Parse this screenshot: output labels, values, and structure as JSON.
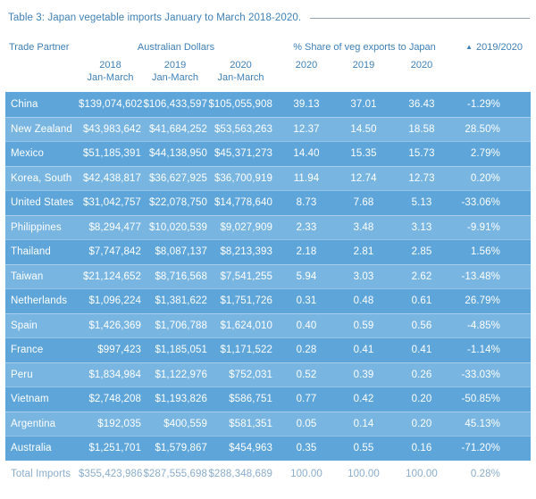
{
  "title": "Table 3: Japan vegetable imports January to March 2018-2020.",
  "header": {
    "trade_partner": "Trade Partner",
    "aud_group": "Australian Dollars",
    "share_group": "% Share of veg exports to Japan",
    "change_label": "2019/2020",
    "sort_icon": "triangle-up",
    "sort_glyph": "▲",
    "sub_columns": [
      {
        "year": "2018",
        "period": "Jan-March"
      },
      {
        "year": "2019",
        "period": "Jan-March"
      },
      {
        "year": "2020",
        "period": "Jan-March"
      },
      {
        "year": "2020",
        "period": ""
      },
      {
        "year": "2019",
        "period": ""
      },
      {
        "year": "2020",
        "period": ""
      }
    ]
  },
  "table": {
    "rows": [
      {
        "cells": [
          "China",
          "$139,074,602",
          "$106,433,597",
          "$105,055,908",
          "39.13",
          "37.01",
          "36.43",
          "-1.29%"
        ]
      },
      {
        "cells": [
          "New Zealand",
          "$43,983,642",
          "$41,684,252",
          "$53,563,263",
          "12.37",
          "14.50",
          "18.58",
          "28.50%"
        ]
      },
      {
        "cells": [
          "Mexico",
          "$51,185,391",
          "$44,138,950",
          "$45,371,273",
          "14.40",
          "15.35",
          "15.73",
          "2.79%"
        ]
      },
      {
        "cells": [
          "Korea, South",
          "$42,438,817",
          "$36,627,925",
          "$36,700,919",
          "11.94",
          "12.74",
          "12.73",
          "0.20%"
        ]
      },
      {
        "cells": [
          "United States",
          "$31,042,757",
          "$22,078,750",
          "$14,778,640",
          "8.73",
          "7.68",
          "5.13",
          "-33.06%"
        ]
      },
      {
        "cells": [
          "Philippines",
          "$8,294,477",
          "$10,020,539",
          "$9,027,909",
          "2.33",
          "3.48",
          "3.13",
          "-9.91%"
        ]
      },
      {
        "cells": [
          "Thailand",
          "$7,747,842",
          "$8,087,137",
          "$8,213,393",
          "2.18",
          "2.81",
          "2.85",
          "1.56%"
        ]
      },
      {
        "cells": [
          "Taiwan",
          "$21,124,652",
          "$8,716,568",
          "$7,541,255",
          "5.94",
          "3.03",
          "2.62",
          "-13.48%"
        ]
      },
      {
        "cells": [
          "Netherlands",
          "$1,096,224",
          "$1,381,622",
          "$1,751,726",
          "0.31",
          "0.48",
          "0.61",
          "26.79%"
        ]
      },
      {
        "cells": [
          "Spain",
          "$1,426,369",
          "$1,706,788",
          "$1,624,010",
          "0.40",
          "0.59",
          "0.56",
          "-4.85%"
        ]
      },
      {
        "cells": [
          "France",
          "$997,423",
          "$1,185,051",
          "$1,171,522",
          "0.28",
          "0.41",
          "0.41",
          "-1.14%"
        ]
      },
      {
        "cells": [
          "Peru",
          "$1,834,984",
          "$1,122,976",
          "$752,031",
          "0.52",
          "0.39",
          "0.26",
          "-33.03%"
        ]
      },
      {
        "cells": [
          "Vietnam",
          "$2,748,208",
          "$1,193,826",
          "$586,751",
          "0.77",
          "0.42",
          "0.20",
          "-50.85%"
        ]
      },
      {
        "cells": [
          "Argentina",
          "$192,035",
          "$400,559",
          "$581,351",
          "0.05",
          "0.14",
          "0.20",
          "45.13%"
        ]
      },
      {
        "cells": [
          "Australia",
          "$1,251,701",
          "$1,579,867",
          "$454,963",
          "0.35",
          "0.55",
          "0.16",
          "-71.20%"
        ]
      }
    ],
    "total_row": [
      "Total Imports",
      "$355,423,986",
      "$287,555,698",
      "$288,348,689",
      "100.00",
      "100.00",
      "100.00",
      "0.28%"
    ]
  },
  "colors": {
    "accent_blue": "#4080b5",
    "row_dark": "#5ea5d9",
    "row_light": "#78b5e1",
    "row_text": "#ffffff",
    "total_text": "#8aadcc",
    "rule_gray": "#93a2b1"
  }
}
